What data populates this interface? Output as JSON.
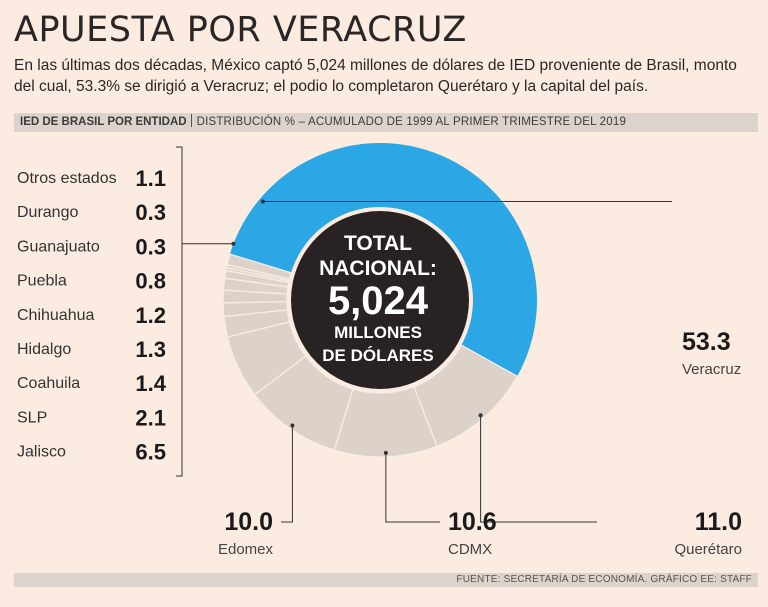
{
  "header": {
    "title": "APUESTA POR VERACRUZ",
    "subtitle": "En las últimas dos décadas, México captó 5,024 millones de dólares de IED proveniente de Brasil, monto del cual, 53.3% se dirigió a Veracruz; el podio lo completaron Querétaro y la capital del país."
  },
  "section": {
    "heading": "IED DE BRASIL POR ENTIDAD",
    "description": "DISTRIBUCIÓN % – ACUMULADO DE 1999 AL PRIMER TRIMESTRE DEL 2019"
  },
  "center": {
    "line1": "TOTAL",
    "line2": "NACIONAL:",
    "amount": "5,024",
    "line4": "MILLONES",
    "line5": "DE DÓLARES"
  },
  "footer": {
    "source": "FUENTE: SECRETARÍA DE ECONOMÍA. GRÁFICO EE: STAFF"
  },
  "colors": {
    "background": "#fbebe0",
    "highlight": "#2ba7e6",
    "segment": "#ddd2ca",
    "segment_line": "#f8ece4",
    "center": "#282322"
  },
  "chart_data": {
    "type": "pie",
    "style": "donut",
    "title": "IED de Brasil por entidad",
    "unit": "%",
    "total_label": "5,024 millones de dólares",
    "categories": [
      "Veracruz",
      "Querétaro",
      "CDMX",
      "Edomex",
      "Jalisco",
      "SLP",
      "Coahuila",
      "Hidalgo",
      "Chihuahua",
      "Puebla",
      "Guanajuato",
      "Durango",
      "Otros estados"
    ],
    "values": [
      53.3,
      11.0,
      10.6,
      10.0,
      6.5,
      2.1,
      1.4,
      1.3,
      1.2,
      0.8,
      0.3,
      0.3,
      1.1
    ],
    "value_labels": [
      "53.3",
      "11.0",
      "10.6",
      "10.0",
      "6.5",
      "2.1",
      "1.4",
      "1.3",
      "1.2",
      "0.8",
      "0.3",
      "0.3",
      "1.1"
    ],
    "highlight": "Veracruz",
    "small_list": [
      "Otros estados",
      "Durango",
      "Guanajuato",
      "Puebla",
      "Chihuahua",
      "Hidalgo",
      "Coahuila",
      "SLP",
      "Jalisco"
    ],
    "callouts": [
      "Veracruz",
      "Querétaro",
      "CDMX",
      "Edomex"
    ]
  }
}
